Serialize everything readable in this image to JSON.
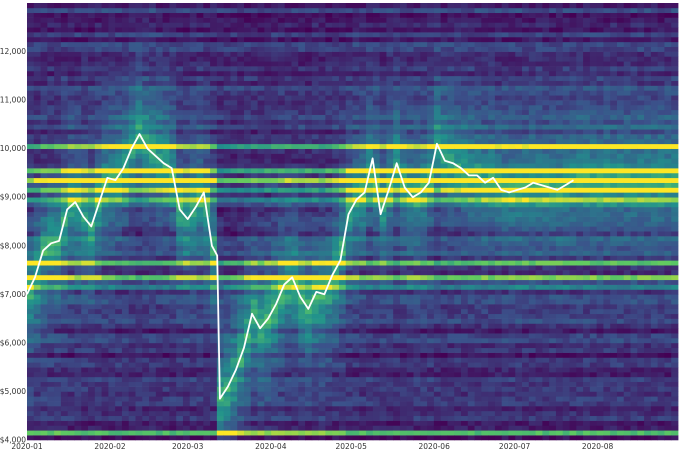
{
  "chart_data": {
    "type": "heatmap",
    "title": "",
    "xlabel": "",
    "ylabel": "",
    "x_range": [
      "2020-01-01",
      "2020-08-31"
    ],
    "ylim": [
      4000,
      13000
    ],
    "x_tick_labels": [
      "2020-01",
      "2020-02",
      "2020-03",
      "2020-04",
      "2020-05",
      "2020-06",
      "2020-07",
      "2020-08"
    ],
    "y_tick_values": [
      4000,
      5000,
      6000,
      7000,
      8000,
      9000,
      10000,
      11000,
      12000
    ],
    "y_tick_labels": [
      "$4,000",
      "$5,000",
      "$6,000",
      "$7,000",
      "$8,000",
      "$9,000",
      "$10,000",
      "$11,000",
      "$12,000"
    ],
    "colorscale": [
      "#440154",
      "#3b528b",
      "#21918c",
      "#5ec962",
      "#fde725"
    ],
    "grid": false,
    "legend": "none",
    "line_color": "#ffffff",
    "price_series": {
      "name": "",
      "x": [
        "2020-01-01",
        "2020-01-04",
        "2020-01-07",
        "2020-01-10",
        "2020-01-13",
        "2020-01-16",
        "2020-01-19",
        "2020-01-22",
        "2020-01-25",
        "2020-01-28",
        "2020-01-31",
        "2020-02-03",
        "2020-02-06",
        "2020-02-09",
        "2020-02-12",
        "2020-02-15",
        "2020-02-18",
        "2020-02-21",
        "2020-02-24",
        "2020-02-27",
        "2020-03-01",
        "2020-03-04",
        "2020-03-07",
        "2020-03-10",
        "2020-03-12",
        "2020-03-13",
        "2020-03-16",
        "2020-03-19",
        "2020-03-22",
        "2020-03-25",
        "2020-03-28",
        "2020-03-31",
        "2020-04-03",
        "2020-04-06",
        "2020-04-09",
        "2020-04-12",
        "2020-04-15",
        "2020-04-18",
        "2020-04-21",
        "2020-04-24",
        "2020-04-27",
        "2020-04-30",
        "2020-05-03",
        "2020-05-06",
        "2020-05-09",
        "2020-05-12",
        "2020-05-15",
        "2020-05-18",
        "2020-05-21",
        "2020-05-24",
        "2020-05-27",
        "2020-05-30",
        "2020-06-02",
        "2020-06-05",
        "2020-06-08",
        "2020-06-11",
        "2020-06-14",
        "2020-06-17",
        "2020-06-20",
        "2020-06-23",
        "2020-06-26",
        "2020-06-29",
        "2020-07-02",
        "2020-07-05",
        "2020-07-08",
        "2020-07-11",
        "2020-07-14",
        "2020-07-17",
        "2020-07-20",
        "2020-07-23"
      ],
      "y": [
        7000,
        7350,
        7900,
        8050,
        8100,
        8750,
        8900,
        8600,
        8400,
        8900,
        9400,
        9350,
        9600,
        10000,
        10300,
        10000,
        9850,
        9700,
        9600,
        8750,
        8550,
        8800,
        9100,
        8000,
        7800,
        4850,
        5100,
        5450,
        5900,
        6600,
        6300,
        6500,
        6800,
        7200,
        7350,
        6950,
        6700,
        7050,
        7000,
        7400,
        7700,
        8650,
        8950,
        9100,
        9800,
        8650,
        9150,
        9700,
        9200,
        9000,
        9100,
        9300,
        10100,
        9750,
        9700,
        9600,
        9450,
        9450,
        9300,
        9400,
        9150,
        9100,
        9150,
        9200,
        9300,
        9250,
        9200,
        9150,
        9250,
        9350
      ]
    }
  }
}
